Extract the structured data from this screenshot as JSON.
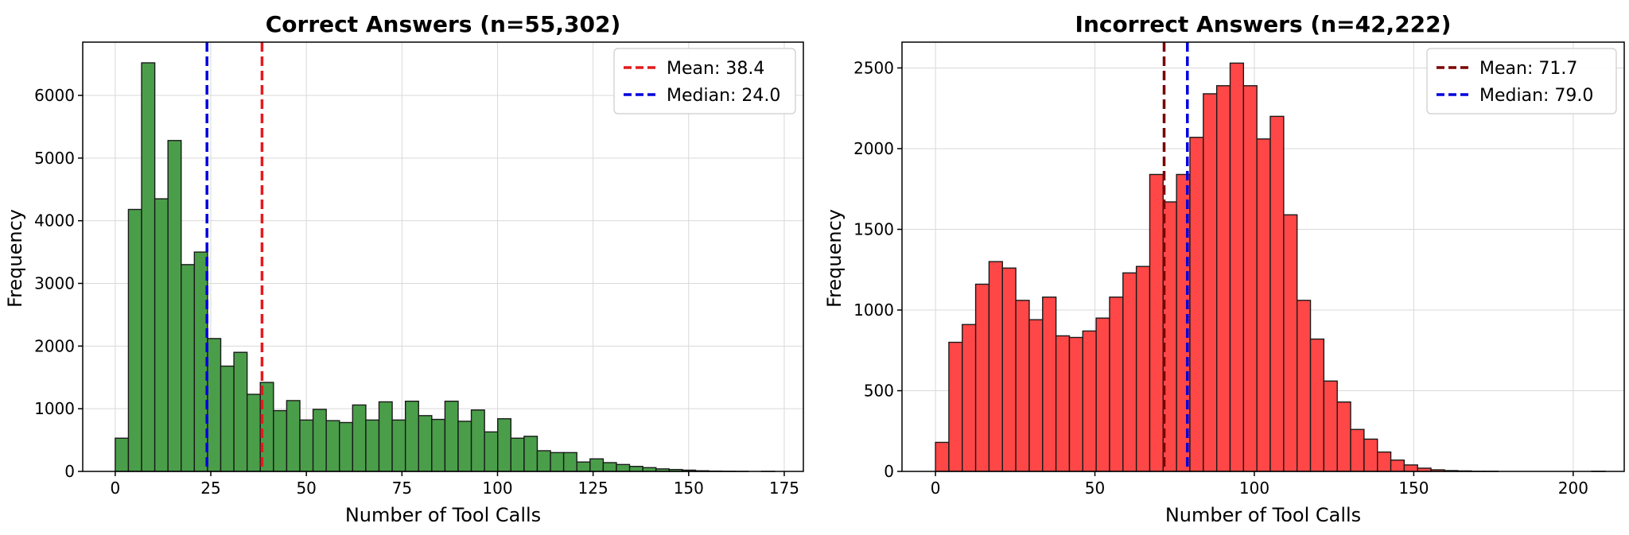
{
  "chart_data": [
    {
      "type": "bar",
      "title": "Correct Answers (n=55,302)",
      "xlabel": "Number of Tool Calls",
      "ylabel": "Frequency",
      "xlim": [
        -8.5,
        180
      ],
      "ylim": [
        0,
        6850
      ],
      "xticks": [
        0,
        25,
        50,
        75,
        100,
        125,
        150,
        175
      ],
      "yticks": [
        0,
        1000,
        2000,
        3000,
        4000,
        5000,
        6000
      ],
      "grid": true,
      "legend_position": "top-right",
      "bar_color": "#4a9e4a",
      "bin_start": 0,
      "bin_width": 3.45,
      "values": [
        530,
        4180,
        6520,
        4350,
        5280,
        3300,
        3500,
        2120,
        1680,
        1900,
        1230,
        1420,
        970,
        1130,
        820,
        990,
        810,
        780,
        1060,
        820,
        1110,
        820,
        1120,
        890,
        830,
        1120,
        800,
        980,
        630,
        840,
        530,
        560,
        330,
        300,
        300,
        150,
        200,
        140,
        110,
        80,
        60,
        40,
        30,
        20,
        10,
        5,
        3,
        1,
        0,
        1
      ],
      "reference_lines": [
        {
          "label": "Mean: 38.4",
          "value": 38.4,
          "color": "#e41a1c"
        },
        {
          "label": "Median: 24.0",
          "value": 24.0,
          "color": "#0000dd"
        }
      ]
    },
    {
      "type": "bar",
      "title": "Incorrect Answers (n=42,222)",
      "xlabel": "Number of Tool Calls",
      "ylabel": "Frequency",
      "xlim": [
        -10.5,
        216
      ],
      "ylim": [
        0,
        2660
      ],
      "xticks": [
        0,
        50,
        100,
        150,
        200
      ],
      "yticks": [
        0,
        500,
        1000,
        1500,
        2000,
        2500
      ],
      "grid": true,
      "legend_position": "top-right",
      "bar_color": "#ff4747",
      "bin_start": 0,
      "bin_width": 4.2,
      "values": [
        180,
        800,
        910,
        1160,
        1300,
        1260,
        1060,
        940,
        1080,
        840,
        830,
        870,
        950,
        1080,
        1230,
        1270,
        1840,
        1670,
        1840,
        2070,
        2340,
        2390,
        2530,
        2390,
        2060,
        2200,
        1590,
        1060,
        820,
        560,
        430,
        260,
        200,
        120,
        70,
        40,
        20,
        10,
        5,
        3,
        1,
        1,
        0,
        0,
        0,
        0,
        0,
        0,
        0,
        1
      ],
      "reference_lines": [
        {
          "label": "Mean: 71.7",
          "value": 71.7,
          "color": "#7a0000"
        },
        {
          "label": "Median: 79.0",
          "value": 79.0,
          "color": "#0000dd"
        }
      ]
    }
  ]
}
